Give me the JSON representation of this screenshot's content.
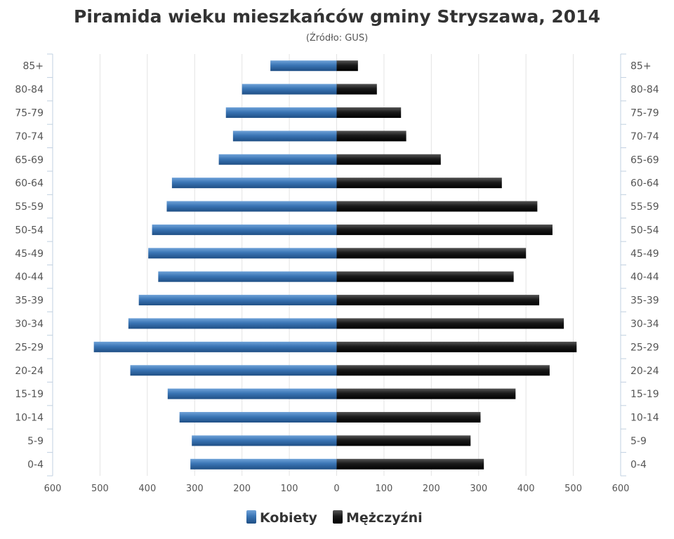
{
  "chart_data": {
    "type": "bar",
    "orientation": "horizontal",
    "title": "Piramida wieku mieszkańców gminy Stryszawa, 2014",
    "subtitle": "(Źródło: GUS)",
    "categories": [
      "85+",
      "80-84",
      "75-79",
      "70-74",
      "65-69",
      "60-64",
      "55-59",
      "50-54",
      "45-49",
      "40-44",
      "35-39",
      "30-34",
      "25-29",
      "20-24",
      "15-19",
      "10-14",
      "5-9",
      "0-4"
    ],
    "series": [
      {
        "name": "Kobiety",
        "color": "#3a75b5",
        "direction": "left",
        "values": [
          140,
          200,
          234,
          219,
          249,
          348,
          359,
          390,
          398,
          377,
          418,
          440,
          513,
          436,
          357,
          332,
          306,
          309
        ]
      },
      {
        "name": "Mężczyźni",
        "color": "#1a1a1a",
        "direction": "right",
        "values": [
          45,
          85,
          136,
          147,
          220,
          349,
          424,
          456,
          400,
          374,
          428,
          480,
          507,
          450,
          378,
          304,
          283,
          311
        ]
      }
    ],
    "xlim": [
      -600,
      600
    ],
    "xticks": [
      -600,
      -500,
      -400,
      -300,
      -200,
      -100,
      0,
      100,
      200,
      300,
      400,
      500,
      600
    ],
    "xtick_labels": [
      "600",
      "500",
      "400",
      "300",
      "200",
      "100",
      "0",
      "100",
      "200",
      "300",
      "400",
      "500",
      "600"
    ],
    "grid": "vertical",
    "legend_position": "bottom-center"
  }
}
